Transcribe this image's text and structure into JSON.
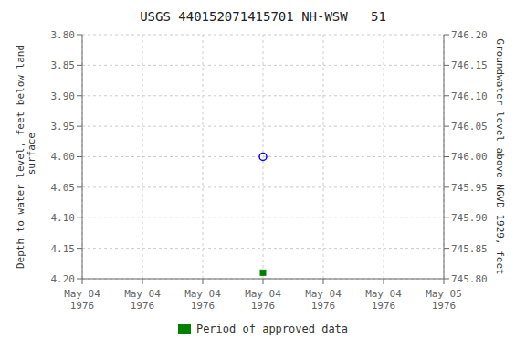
{
  "chart_data": {
    "type": "scatter",
    "title": "USGS 440152071415701 NH-WSW   51",
    "y_label": "Depth to water level, feet below land\n surface",
    "y2_label": "Groundwater level above NGVD 1929, feet",
    "categories": [
      "May 04\n1976",
      "May 04\n1976",
      "May 04\n1976",
      "May 04\n1976",
      "May 04\n1976",
      "May 04\n1976",
      "May 05\n1976"
    ],
    "series": [
      {
        "color": "blue",
        "marker": "open_circle",
        "values": [
          null,
          null,
          null,
          4.0,
          null,
          null,
          null
        ]
      },
      {
        "name": "Period of approved data",
        "color": "#008000",
        "marker": "square",
        "values": [
          null,
          null,
          null,
          4.19,
          null,
          null,
          null
        ]
      }
    ],
    "ylim": [
      4.2,
      3.8
    ],
    "yticks": [
      {
        "value": 3.8,
        "label": "3.80"
      },
      3.85,
      {
        "value": 3.9,
        "label": "3.90"
      },
      3.95,
      {
        "value": 4.0,
        "label": "4.00"
      },
      4.05,
      {
        "value": 4.1,
        "label": "4.10"
      },
      4.15,
      {
        "value": 4.2,
        "label": "4.20"
      }
    ],
    "y2lim": [
      745.8,
      746.2
    ],
    "y2ticks": [
      {
        "value": 746.2,
        "label": "746.20"
      },
      746.15,
      {
        "value": 746.1,
        "label": "746.10"
      },
      746.05,
      {
        "value": 746.0,
        "label": "746.00"
      },
      745.95,
      {
        "value": 745.9,
        "label": "745.90"
      },
      745.85,
      {
        "value": 745.8,
        "label": "745.80"
      }
    ],
    "grid": true
  }
}
